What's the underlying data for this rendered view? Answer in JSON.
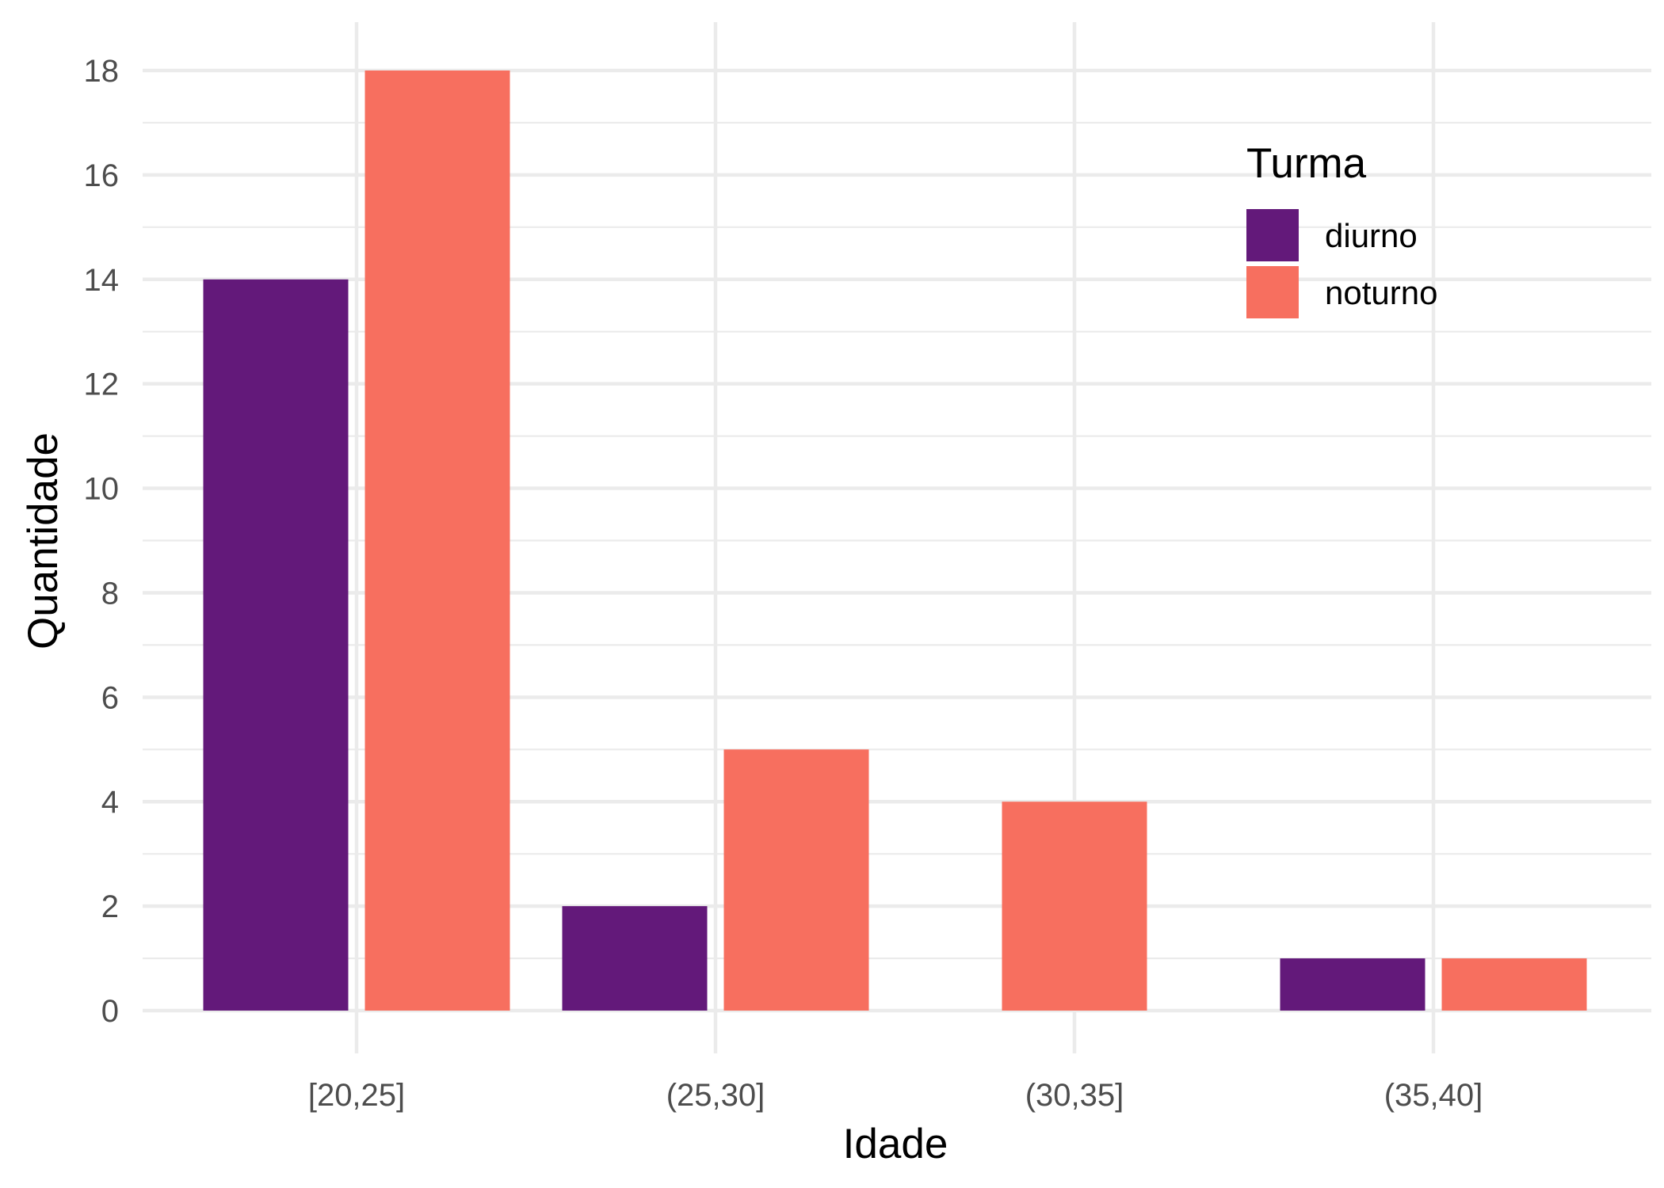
{
  "chart_data": {
    "type": "bar",
    "categories": [
      "[20,25]",
      "(25,30]",
      "(30,35]",
      "(35,40]"
    ],
    "series": [
      {
        "name": "diurno",
        "values": [
          14,
          2,
          null,
          1
        ],
        "color": "#63197A"
      },
      {
        "name": "noturno",
        "values": [
          18,
          5,
          4,
          1
        ],
        "color": "#F76F5F"
      }
    ],
    "xlabel": "Idade",
    "ylabel": "Quantidade",
    "ylim": [
      0,
      18
    ],
    "yticks": [
      0,
      2,
      4,
      6,
      8,
      10,
      12,
      14,
      16,
      18
    ],
    "grid": true,
    "legend": {
      "title": "Turma",
      "position": "top-right"
    }
  }
}
